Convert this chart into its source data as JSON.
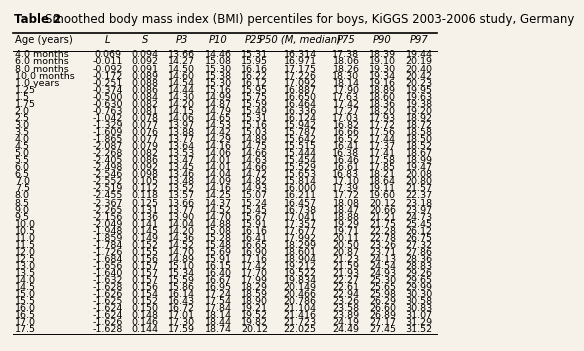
{
  "title_bold": "Table 2",
  "title_normal": "Smoothed body mass index (BMI) percentiles for boys, KiGGS 2003-2006 study, Germany",
  "headers": [
    "Age (years)",
    "L",
    "S",
    "P3",
    "P10",
    "P25",
    "P50 (M, median)",
    "P75",
    "P90",
    "P97"
  ],
  "rows": [
    [
      "4.0 months",
      "0.069",
      "0.094",
      "13.66",
      "14.46",
      "15.31",
      "16.314",
      "17.38",
      "18.39",
      "19.44"
    ],
    [
      "6.0 months",
      "-0.011",
      "0.092",
      "14.27",
      "15.08",
      "15.95",
      "16.971",
      "18.06",
      "19.10",
      "20.19"
    ],
    [
      "8.0 months",
      "-0.092",
      "0.091",
      "14.50",
      "15.30",
      "16.16",
      "17.175",
      "18.26",
      "19.30",
      "20.40"
    ],
    [
      "10.0 months",
      "-0.172",
      "0.089",
      "14.60",
      "15.38",
      "16.22",
      "17.226",
      "18.30",
      "19.34",
      "20.42"
    ],
    [
      "1.0 years",
      "-0.251",
      "0.088",
      "14.54",
      "15.30",
      "16.12",
      "17.092",
      "18.14",
      "19.16",
      "20.23"
    ],
    [
      "1.25",
      "-0.374",
      "0.086",
      "14.44",
      "15.16",
      "15.95",
      "16.887",
      "17.90",
      "18.89",
      "19.95"
    ],
    [
      "1.5",
      "-0.500",
      "0.084",
      "14.30",
      "14.99",
      "15.75",
      "16.650",
      "17.63",
      "18.60",
      "19.63"
    ],
    [
      "1.75",
      "-0.630",
      "0.082",
      "14.20",
      "14.87",
      "15.59",
      "16.464",
      "17.42",
      "18.36",
      "19.38"
    ],
    [
      "2.0",
      "-0.763",
      "0.081",
      "14.15",
      "14.79",
      "15.49",
      "16.336",
      "17.27",
      "18.20",
      "19.20"
    ],
    [
      "2.5",
      "-1.042",
      "0.078",
      "14.06",
      "14.65",
      "15.31",
      "16.124",
      "17.03",
      "17.93",
      "18.92"
    ],
    [
      "3.0",
      "-1.329",
      "0.077",
      "13.97",
      "14.53",
      "15.16",
      "15.942",
      "16.82",
      "17.72",
      "18.72"
    ],
    [
      "3.5",
      "-1.609",
      "0.076",
      "13.88",
      "14.42",
      "15.03",
      "15.787",
      "16.66",
      "17.56",
      "18.58"
    ],
    [
      "4.0",
      "-1.865",
      "0.077",
      "13.77",
      "14.29",
      "14.89",
      "15.642",
      "16.52",
      "17.44",
      "18.50"
    ],
    [
      "4.5",
      "-2.087",
      "0.079",
      "13.64",
      "14.16",
      "14.75",
      "15.515",
      "16.41",
      "17.37",
      "18.52"
    ],
    [
      "5.0",
      "-2.268",
      "0.082",
      "13.53",
      "14.06",
      "14.66",
      "15.444",
      "16.38",
      "17.41",
      "18.67"
    ],
    [
      "5.5",
      "-2.405",
      "0.086",
      "13.47",
      "14.01",
      "14.63",
      "15.454",
      "16.46",
      "17.58",
      "18.99"
    ],
    [
      "6.0",
      "-2.498",
      "0.092",
      "13.45",
      "14.01",
      "14.66",
      "15.529",
      "16.61",
      "17.85",
      "19.47"
    ],
    [
      "6.5",
      "-2.546",
      "0.098",
      "13.46",
      "14.04",
      "14.72",
      "15.653",
      "16.83",
      "18.21",
      "20.08"
    ],
    [
      "7.0",
      "-2.552",
      "0.105",
      "13.48",
      "14.09",
      "14.82",
      "15.814",
      "17.10",
      "18.64",
      "20.80"
    ],
    [
      "7.5",
      "-2.519",
      "0.112",
      "13.52",
      "14.16",
      "14.93",
      "16.000",
      "17.39",
      "19.11",
      "21.57"
    ],
    [
      "8.0",
      "-2.455",
      "0.118",
      "13.57",
      "14.25",
      "15.07",
      "16.211",
      "17.72",
      "19.60",
      "22.37"
    ],
    [
      "8.5",
      "-2.367",
      "0.125",
      "13.66",
      "14.37",
      "15.24",
      "16.457",
      "18.08",
      "20.12",
      "23.18"
    ],
    [
      "9.0",
      "-2.265",
      "0.131",
      "13.77",
      "14.52",
      "15.45",
      "16.738",
      "18.47",
      "20.66",
      "23.97"
    ],
    [
      "9.5",
      "-2.156",
      "0.136",
      "13.90",
      "14.70",
      "15.67",
      "17.041",
      "18.88",
      "21.21",
      "24.73"
    ],
    [
      "10.0",
      "-2.049",
      "0.141",
      "14.04",
      "14.88",
      "15.91",
      "17.357",
      "19.29",
      "21.75",
      "25.45"
    ],
    [
      "10.5",
      "-1.948",
      "0.145",
      "14.20",
      "15.08",
      "16.16",
      "17.677",
      "19.71",
      "22.28",
      "26.12"
    ],
    [
      "11.0",
      "-1.859",
      "0.149",
      "14.36",
      "15.28",
      "16.41",
      "17.992",
      "20.11",
      "22.78",
      "26.75"
    ],
    [
      "11.5",
      "-1.784",
      "0.152",
      "14.52",
      "15.48",
      "16.65",
      "18.299",
      "20.50",
      "23.26",
      "27.32"
    ],
    [
      "12.0",
      "-1.726",
      "0.155",
      "14.70",
      "15.69",
      "16.90",
      "18.601",
      "20.87",
      "23.71",
      "27.86"
    ],
    [
      "12.5",
      "-1.684",
      "0.156",
      "14.89",
      "15.91",
      "17.16",
      "18.904",
      "21.23",
      "24.13",
      "28.36"
    ],
    [
      "13.0",
      "-1.656",
      "0.157",
      "15.10",
      "16.15",
      "17.42",
      "19.212",
      "21.59",
      "24.54",
      "28.83"
    ],
    [
      "13.5",
      "-1.640",
      "0.157",
      "15.34",
      "16.40",
      "17.70",
      "19.522",
      "21.93",
      "24.93",
      "29.26"
    ],
    [
      "14.0",
      "-1.632",
      "0.157",
      "15.59",
      "16.67",
      "17.99",
      "19.834",
      "22.27",
      "25.30",
      "29.65"
    ],
    [
      "14.5",
      "-1.628",
      "0.156",
      "15.86",
      "16.95",
      "18.29",
      "20.149",
      "22.61",
      "25.65",
      "29.99"
    ],
    [
      "15.0",
      "-1.626",
      "0.154",
      "16.14",
      "17.24",
      "18.59",
      "20.466",
      "22.94",
      "25.98",
      "30.30"
    ],
    [
      "15.5",
      "-1.625",
      "0.152",
      "16.43",
      "17.54",
      "18.90",
      "20.786",
      "23.26",
      "26.29",
      "30.58"
    ],
    [
      "16.0",
      "-1.624",
      "0.150",
      "16.72",
      "17.84",
      "19.21",
      "21.104",
      "23.58",
      "26.60",
      "30.83"
    ],
    [
      "16.5",
      "-1.624",
      "0.148",
      "17.01",
      "18.14",
      "19.52",
      "21.416",
      "23.89",
      "26.89",
      "31.07"
    ],
    [
      "17.0",
      "-1.626",
      "0.146",
      "17.30",
      "18.44",
      "19.82",
      "21.723",
      "24.19",
      "27.17",
      "31.29"
    ],
    [
      "17.5",
      "-1.628",
      "0.144",
      "17.59",
      "18.74",
      "20.12",
      "22.025",
      "24.49",
      "27.45",
      "31.52"
    ]
  ],
  "background_color": "#f7f2e9",
  "font_size": 6.8,
  "header_font_size": 7.2,
  "title_font_size": 8.5
}
